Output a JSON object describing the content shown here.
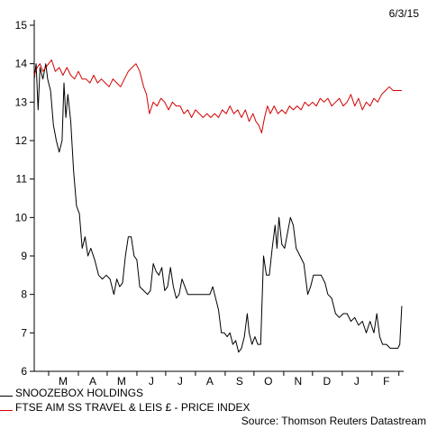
{
  "date_stamp": "6/3/15",
  "source": "Source: Thomson Reuters Datastream",
  "chart_data": {
    "type": "line",
    "title": "",
    "xlabel": "",
    "ylabel": "",
    "ylim": [
      6,
      15
    ],
    "yticks": [
      6,
      7,
      8,
      9,
      10,
      11,
      12,
      13,
      14,
      15
    ],
    "xlim": [
      "2014-02-14",
      "2015-03-06"
    ],
    "xticks": [
      {
        "label": "M",
        "date": "2014-03-16"
      },
      {
        "label": "A",
        "date": "2014-04-16"
      },
      {
        "label": "M",
        "date": "2014-05-16"
      },
      {
        "label": "J",
        "date": "2014-06-16"
      },
      {
        "label": "J",
        "date": "2014-07-16"
      },
      {
        "label": "A",
        "date": "2014-08-16"
      },
      {
        "label": "S",
        "date": "2014-09-16"
      },
      {
        "label": "O",
        "date": "2014-10-16"
      },
      {
        "label": "N",
        "date": "2014-11-16"
      },
      {
        "label": "D",
        "date": "2014-12-16"
      },
      {
        "label": "J",
        "date": "2015-01-16"
      },
      {
        "label": "F",
        "date": "2015-02-16"
      }
    ],
    "grid": false,
    "legend_position": "bottom-left",
    "series": [
      {
        "name": "SNOOZEBOX HOLDINGS",
        "color": "#000000",
        "points": [
          [
            "2014-02-14",
            13.6
          ],
          [
            "2014-02-16",
            14.0
          ],
          [
            "2014-02-18",
            12.8
          ],
          [
            "2014-02-20",
            13.9
          ],
          [
            "2014-02-23",
            13.6
          ],
          [
            "2014-02-26",
            14.0
          ],
          [
            "2014-02-28",
            13.6
          ],
          [
            "2014-03-03",
            13.3
          ],
          [
            "2014-03-06",
            12.4
          ],
          [
            "2014-03-09",
            12.0
          ],
          [
            "2014-03-12",
            11.7
          ],
          [
            "2014-03-15",
            12.0
          ],
          [
            "2014-03-17",
            13.5
          ],
          [
            "2014-03-19",
            12.6
          ],
          [
            "2014-03-21",
            13.2
          ],
          [
            "2014-03-24",
            12.5
          ],
          [
            "2014-03-27",
            11.2
          ],
          [
            "2014-03-30",
            10.3
          ],
          [
            "2014-04-02",
            10.1
          ],
          [
            "2014-04-05",
            9.2
          ],
          [
            "2014-04-08",
            9.5
          ],
          [
            "2014-04-11",
            9.0
          ],
          [
            "2014-04-14",
            9.2
          ],
          [
            "2014-04-18",
            8.9
          ],
          [
            "2014-04-22",
            8.5
          ],
          [
            "2014-04-26",
            8.4
          ],
          [
            "2014-04-30",
            8.5
          ],
          [
            "2014-05-04",
            8.4
          ],
          [
            "2014-05-08",
            8.0
          ],
          [
            "2014-05-11",
            8.4
          ],
          [
            "2014-05-14",
            8.2
          ],
          [
            "2014-05-17",
            8.3
          ],
          [
            "2014-05-20",
            9.0
          ],
          [
            "2014-05-23",
            9.5
          ],
          [
            "2014-05-26",
            9.5
          ],
          [
            "2014-05-29",
            9.0
          ],
          [
            "2014-06-01",
            8.9
          ],
          [
            "2014-06-04",
            8.2
          ],
          [
            "2014-06-08",
            8.1
          ],
          [
            "2014-06-12",
            8.0
          ],
          [
            "2014-06-15",
            8.1
          ],
          [
            "2014-06-18",
            8.8
          ],
          [
            "2014-06-21",
            8.6
          ],
          [
            "2014-06-24",
            8.5
          ],
          [
            "2014-06-27",
            8.7
          ],
          [
            "2014-06-30",
            8.1
          ],
          [
            "2014-07-03",
            8.2
          ],
          [
            "2014-07-06",
            8.7
          ],
          [
            "2014-07-09",
            8.2
          ],
          [
            "2014-07-12",
            7.9
          ],
          [
            "2014-07-15",
            8.0
          ],
          [
            "2014-07-18",
            8.4
          ],
          [
            "2014-07-21",
            8.2
          ],
          [
            "2014-07-24",
            8.0
          ],
          [
            "2014-07-28",
            8.0
          ],
          [
            "2014-08-02",
            8.0
          ],
          [
            "2014-08-07",
            8.0
          ],
          [
            "2014-08-12",
            8.0
          ],
          [
            "2014-08-16",
            8.0
          ],
          [
            "2014-08-19",
            8.2
          ],
          [
            "2014-08-22",
            7.9
          ],
          [
            "2014-08-25",
            7.6
          ],
          [
            "2014-08-28",
            7.0
          ],
          [
            "2014-08-31",
            7.0
          ],
          [
            "2014-09-03",
            6.9
          ],
          [
            "2014-09-06",
            7.0
          ],
          [
            "2014-09-09",
            6.7
          ],
          [
            "2014-09-12",
            6.8
          ],
          [
            "2014-09-15",
            6.5
          ],
          [
            "2014-09-18",
            6.6
          ],
          [
            "2014-09-21",
            6.9
          ],
          [
            "2014-09-24",
            7.5
          ],
          [
            "2014-09-26",
            7.0
          ],
          [
            "2014-09-29",
            6.7
          ],
          [
            "2014-10-02",
            6.9
          ],
          [
            "2014-10-05",
            6.7
          ],
          [
            "2014-10-08",
            6.7
          ],
          [
            "2014-10-11",
            9.0
          ],
          [
            "2014-10-14",
            8.5
          ],
          [
            "2014-10-17",
            8.5
          ],
          [
            "2014-10-20",
            9.2
          ],
          [
            "2014-10-23",
            9.8
          ],
          [
            "2014-10-25",
            9.2
          ],
          [
            "2014-10-27",
            10.0
          ],
          [
            "2014-10-30",
            9.3
          ],
          [
            "2014-11-02",
            9.2
          ],
          [
            "2014-11-05",
            9.6
          ],
          [
            "2014-11-08",
            10.0
          ],
          [
            "2014-11-11",
            9.8
          ],
          [
            "2014-11-14",
            9.2
          ],
          [
            "2014-11-18",
            9.0
          ],
          [
            "2014-11-22",
            8.8
          ],
          [
            "2014-11-26",
            8.0
          ],
          [
            "2014-11-29",
            8.2
          ],
          [
            "2014-12-02",
            8.5
          ],
          [
            "2014-12-06",
            8.5
          ],
          [
            "2014-12-10",
            8.5
          ],
          [
            "2014-12-14",
            8.3
          ],
          [
            "2014-12-17",
            8.0
          ],
          [
            "2014-12-21",
            7.9
          ],
          [
            "2014-12-25",
            7.5
          ],
          [
            "2014-12-29",
            7.4
          ],
          [
            "2015-01-02",
            7.5
          ],
          [
            "2015-01-06",
            7.5
          ],
          [
            "2015-01-10",
            7.3
          ],
          [
            "2015-01-14",
            7.4
          ],
          [
            "2015-01-18",
            7.2
          ],
          [
            "2015-01-22",
            7.3
          ],
          [
            "2015-01-26",
            7.0
          ],
          [
            "2015-01-30",
            7.3
          ],
          [
            "2015-02-03",
            7.0
          ],
          [
            "2015-02-06",
            7.5
          ],
          [
            "2015-02-09",
            6.9
          ],
          [
            "2015-02-12",
            6.7
          ],
          [
            "2015-02-16",
            6.7
          ],
          [
            "2015-02-20",
            6.6
          ],
          [
            "2015-02-24",
            6.6
          ],
          [
            "2015-02-28",
            6.6
          ],
          [
            "2015-03-02",
            6.7
          ],
          [
            "2015-03-04",
            7.7
          ]
        ]
      },
      {
        "name": "FTSE AIM SS TRAVEL & LEIS £ - PRICE INDEX",
        "color": "#d40000",
        "points": [
          [
            "2014-02-14",
            13.7
          ],
          [
            "2014-02-17",
            13.9
          ],
          [
            "2014-02-20",
            14.0
          ],
          [
            "2014-02-23",
            13.8
          ],
          [
            "2014-02-26",
            13.9
          ],
          [
            "2014-03-01",
            14.0
          ],
          [
            "2014-03-04",
            14.1
          ],
          [
            "2014-03-08",
            13.8
          ],
          [
            "2014-03-12",
            13.9
          ],
          [
            "2014-03-16",
            13.7
          ],
          [
            "2014-03-20",
            13.9
          ],
          [
            "2014-03-24",
            13.7
          ],
          [
            "2014-03-28",
            13.6
          ],
          [
            "2014-04-01",
            13.8
          ],
          [
            "2014-04-05",
            13.6
          ],
          [
            "2014-04-09",
            13.6
          ],
          [
            "2014-04-13",
            13.5
          ],
          [
            "2014-04-17",
            13.7
          ],
          [
            "2014-04-21",
            13.5
          ],
          [
            "2014-04-25",
            13.6
          ],
          [
            "2014-04-29",
            13.5
          ],
          [
            "2014-05-03",
            13.4
          ],
          [
            "2014-05-07",
            13.6
          ],
          [
            "2014-05-11",
            13.5
          ],
          [
            "2014-05-15",
            13.4
          ],
          [
            "2014-05-19",
            13.6
          ],
          [
            "2014-05-23",
            13.8
          ],
          [
            "2014-05-27",
            13.9
          ],
          [
            "2014-05-31",
            14.0
          ],
          [
            "2014-06-04",
            13.8
          ],
          [
            "2014-06-08",
            13.4
          ],
          [
            "2014-06-11",
            13.2
          ],
          [
            "2014-06-14",
            12.7
          ],
          [
            "2014-06-18",
            13.0
          ],
          [
            "2014-06-22",
            12.9
          ],
          [
            "2014-06-26",
            13.1
          ],
          [
            "2014-06-30",
            13.0
          ],
          [
            "2014-07-04",
            12.8
          ],
          [
            "2014-07-08",
            13.0
          ],
          [
            "2014-07-12",
            12.9
          ],
          [
            "2014-07-16",
            12.9
          ],
          [
            "2014-07-20",
            12.7
          ],
          [
            "2014-07-24",
            12.8
          ],
          [
            "2014-07-28",
            12.6
          ],
          [
            "2014-08-01",
            12.8
          ],
          [
            "2014-08-05",
            12.7
          ],
          [
            "2014-08-09",
            12.6
          ],
          [
            "2014-08-13",
            12.7
          ],
          [
            "2014-08-17",
            12.6
          ],
          [
            "2014-08-21",
            12.7
          ],
          [
            "2014-08-25",
            12.6
          ],
          [
            "2014-08-29",
            12.8
          ],
          [
            "2014-09-02",
            12.7
          ],
          [
            "2014-09-06",
            12.9
          ],
          [
            "2014-09-10",
            12.7
          ],
          [
            "2014-09-14",
            12.8
          ],
          [
            "2014-09-18",
            12.6
          ],
          [
            "2014-09-22",
            12.8
          ],
          [
            "2014-09-26",
            12.5
          ],
          [
            "2014-09-30",
            12.7
          ],
          [
            "2014-10-03",
            12.5
          ],
          [
            "2014-10-06",
            12.4
          ],
          [
            "2014-10-09",
            12.2
          ],
          [
            "2014-10-12",
            12.6
          ],
          [
            "2014-10-15",
            12.9
          ],
          [
            "2014-10-18",
            12.7
          ],
          [
            "2014-10-22",
            12.9
          ],
          [
            "2014-10-26",
            12.7
          ],
          [
            "2014-10-30",
            12.8
          ],
          [
            "2014-11-03",
            12.7
          ],
          [
            "2014-11-07",
            12.9
          ],
          [
            "2014-11-11",
            12.8
          ],
          [
            "2014-11-15",
            12.9
          ],
          [
            "2014-11-19",
            12.8
          ],
          [
            "2014-11-23",
            13.0
          ],
          [
            "2014-11-27",
            12.9
          ],
          [
            "2014-12-01",
            13.0
          ],
          [
            "2014-12-05",
            12.9
          ],
          [
            "2014-12-09",
            13.1
          ],
          [
            "2014-12-13",
            13.0
          ],
          [
            "2014-12-17",
            13.1
          ],
          [
            "2014-12-21",
            12.9
          ],
          [
            "2014-12-25",
            13.0
          ],
          [
            "2014-12-29",
            13.1
          ],
          [
            "2015-01-02",
            12.9
          ],
          [
            "2015-01-06",
            13.0
          ],
          [
            "2015-01-10",
            13.2
          ],
          [
            "2015-01-14",
            12.9
          ],
          [
            "2015-01-18",
            13.1
          ],
          [
            "2015-01-22",
            12.8
          ],
          [
            "2015-01-26",
            13.0
          ],
          [
            "2015-01-30",
            12.9
          ],
          [
            "2015-02-03",
            13.1
          ],
          [
            "2015-02-07",
            13.0
          ],
          [
            "2015-02-11",
            13.2
          ],
          [
            "2015-02-15",
            13.3
          ],
          [
            "2015-02-19",
            13.4
          ],
          [
            "2015-02-23",
            13.3
          ],
          [
            "2015-02-27",
            13.3
          ],
          [
            "2015-03-04",
            13.3
          ]
        ]
      }
    ]
  }
}
